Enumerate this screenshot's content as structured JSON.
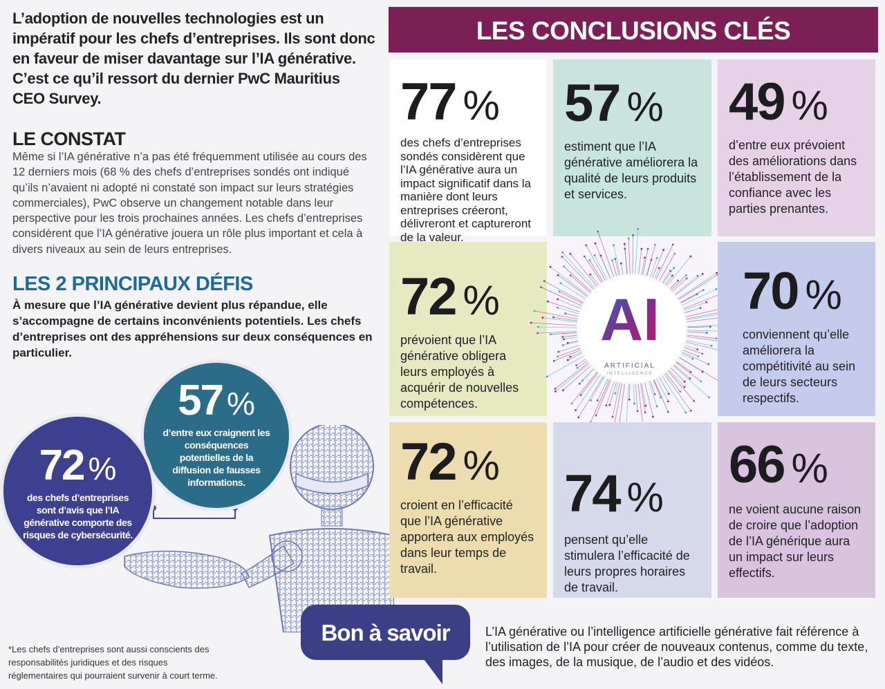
{
  "intro": "L’adoption de nouvelles technologies est un impératif pour les chefs d’entreprises. Ils sont donc en faveur de miser davantage sur l’IA générative. C’est ce qu’il ressort du dernier PwC Mauritius CEO Survey.",
  "constat": {
    "heading": "LE CONSTAT",
    "body": "Même si l’IA générative n’a pas été fréquemment utilisée au cours des 12 derniers mois (68 % des chefs d’entreprises sondés ont indiqué qu’ils n’avaient ni adopté ni constaté son impact sur leurs stratégies commerciales), PwC observe un changement notable dans leur perspective pour les trois prochaines années. Les chefs d’entreprises considèrent que l’IA générative jouera un rôle plus important et cela à divers niveaux au sein de leurs entreprises."
  },
  "defis": {
    "heading": "LES 2 PRINCIPAUX DÉFIS",
    "body": "À mesure que l’IA générative devient plus répandue, elle s’accompagne de certains inconvénients potentiels. Les chefs d’entreprises ont des appréhensions sur deux conséquences en particulier."
  },
  "circles": [
    {
      "number": "57",
      "unit": "%",
      "text": "d’entre eux craignent les conséquences potentielles de la diffusion de fausses informations."
    },
    {
      "number": "72",
      "unit": "%",
      "text": "des chefs d’entreprises sont d’avis que l’IA générative comporte des risques de cybersécurité."
    }
  ],
  "footnote": "*Les chefs d’entreprises sont aussi conscients des responsabilités juridiques et des risques réglementaires qui pourraient survenir à court terme.",
  "conclusions": {
    "title": "LES CONCLUSIONS CLÉS",
    "cards": [
      {
        "number": "77",
        "unit": "%",
        "text": "des chefs d’entreprises sondés considèrent que l’IA générative aura un impact significatif dans la manière dont leurs entreprises créeront, délivreront et captureront de la valeur."
      },
      {
        "number": "57",
        "unit": "%",
        "text": "estiment que l’IA générative améliorera la qualité de leurs produits et services."
      },
      {
        "number": "49",
        "unit": "%",
        "text": "d’entre eux prévoient des améliorations dans l’établissement de la confiance avec les parties prenantes."
      },
      {
        "number": "72",
        "unit": "%",
        "text": "prévoient que l’IA générative obligera leurs employés à acquérir de nouvelles compétences."
      },
      {
        "number": "70",
        "unit": "%",
        "text": "conviennent qu’elle améliorera la compétitivité au sein de leurs secteurs respectifs."
      },
      {
        "number": "72",
        "unit": "%",
        "text": "croient en l’efficacité que l’IA générative apportera aux employés dans leur temps de travail."
      },
      {
        "number": "74",
        "unit": "%",
        "text": "pensent qu’elle stimulera l’efficacité de leurs propres horaires de travail."
      },
      {
        "number": "66",
        "unit": "%",
        "text": "ne voient aucune raison de croire que l’adoption de l’IA générique aura un impact sur leurs effectifs."
      }
    ],
    "center_logo": {
      "letters": "AI",
      "caption": "ARTIFICIAL",
      "sub": "INTELLIGENCE"
    }
  },
  "bon_a_savoir": {
    "label": "Bon à savoir",
    "text": "L’IA générative ou l’intelligence artificielle générative fait référence à l’utilisation de l’IA pour créer de nouveaux contenus, comme du texte, des images, de la musique, de l’audio et des vidéos."
  },
  "colors": {
    "title_bar": "#7c1f57",
    "defis_heading": "#1d6a95",
    "circle_teal": "#2b6c89",
    "circle_indigo": "#3d3f8f",
    "bon_box": "#3a3f86"
  }
}
